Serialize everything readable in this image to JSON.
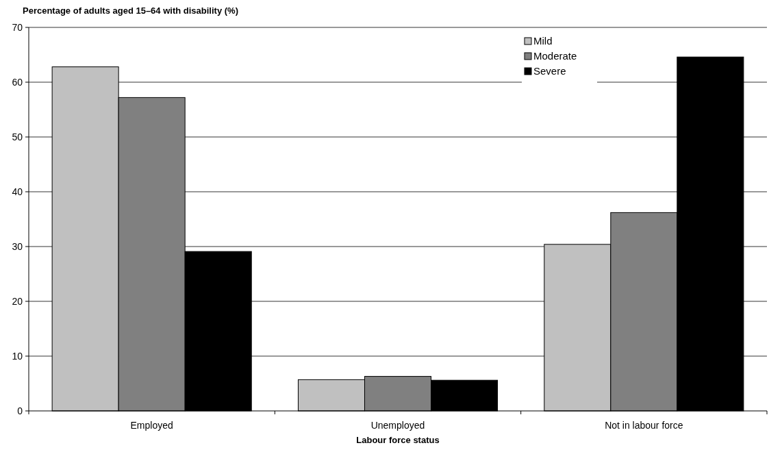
{
  "chart_data": {
    "type": "bar",
    "title": "Percentage of adults aged 15–64 with disability (%)",
    "xlabel": "Labour force status",
    "categories": [
      "Employed",
      "Unemployed",
      "Not in labour force"
    ],
    "series": [
      {
        "name": "Mild",
        "color": "#c0c0c0",
        "values": [
          62.8,
          5.7,
          30.4
        ]
      },
      {
        "name": "Moderate",
        "color": "#808080",
        "values": [
          57.2,
          6.3,
          36.2
        ]
      },
      {
        "name": "Severe",
        "color": "#000000",
        "values": [
          29.1,
          5.6,
          64.6
        ]
      }
    ],
    "ylim": [
      0,
      70
    ],
    "yticks": [
      0,
      10,
      20,
      30,
      40,
      50,
      60,
      70
    ],
    "grid": "y",
    "legend": "top right"
  }
}
